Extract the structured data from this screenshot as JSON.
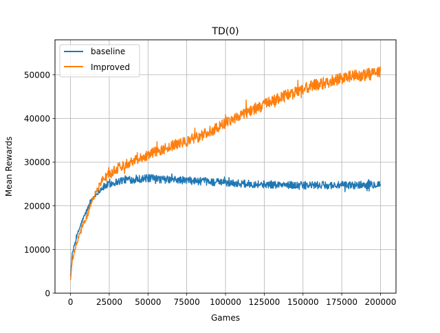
{
  "chart_data": {
    "type": "line",
    "title": "TD(0)",
    "xlabel": "Games",
    "ylabel": "Mean Rewards",
    "xlim": [
      -10000,
      210000
    ],
    "ylim": [
      0,
      58000
    ],
    "xticks": [
      0,
      25000,
      50000,
      75000,
      100000,
      125000,
      150000,
      175000,
      200000
    ],
    "yticks": [
      0,
      10000,
      20000,
      30000,
      40000,
      50000
    ],
    "grid": true,
    "legend": "top-left",
    "series": [
      {
        "name": "baseline",
        "color": "#1f77b4",
        "x": [
          0,
          1000,
          2500,
          5000,
          7500,
          10000,
          12500,
          15000,
          17500,
          20000,
          22500,
          25000,
          30000,
          35000,
          40000,
          45000,
          50000,
          55000,
          60000,
          65000,
          70000,
          75000,
          80000,
          85000,
          90000,
          95000,
          100000,
          105000,
          110000,
          115000,
          120000,
          125000,
          130000,
          135000,
          140000,
          145000,
          150000,
          155000,
          160000,
          165000,
          170000,
          175000,
          180000,
          185000,
          190000,
          195000,
          200000
        ],
        "y": [
          4000,
          8500,
          11000,
          14000,
          16500,
          18500,
          20500,
          22000,
          23000,
          24000,
          24500,
          25000,
          25500,
          26000,
          26000,
          26200,
          26300,
          26200,
          26000,
          26000,
          25900,
          25800,
          25700,
          25600,
          25500,
          25400,
          25300,
          25200,
          25100,
          25000,
          25000,
          24900,
          24900,
          24800,
          24800,
          24700,
          24700,
          24700,
          24700,
          24700,
          24700,
          24700,
          24700,
          24800,
          24800,
          24900,
          25000
        ],
        "noise": 1100
      },
      {
        "name": "Improved",
        "color": "#ff7f0e",
        "x": [
          0,
          1000,
          2500,
          5000,
          7500,
          10000,
          12500,
          15000,
          17500,
          20000,
          22500,
          25000,
          30000,
          35000,
          40000,
          45000,
          50000,
          55000,
          60000,
          65000,
          70000,
          75000,
          80000,
          85000,
          90000,
          95000,
          100000,
          105000,
          110000,
          115000,
          120000,
          125000,
          130000,
          135000,
          140000,
          145000,
          150000,
          155000,
          160000,
          165000,
          170000,
          175000,
          180000,
          185000,
          190000,
          195000,
          200000
        ],
        "y": [
          3000,
          7000,
          9500,
          12500,
          15000,
          17000,
          19500,
          22000,
          24000,
          25500,
          26500,
          27200,
          28500,
          29500,
          30300,
          31000,
          31700,
          32400,
          33000,
          33700,
          34200,
          34800,
          35500,
          36200,
          37000,
          38000,
          39000,
          40000,
          40800,
          41600,
          42400,
          43100,
          43900,
          44600,
          45300,
          46000,
          46700,
          47300,
          47800,
          48300,
          48700,
          49100,
          49500,
          49800,
          50000,
          50200,
          50400
        ],
        "noise": 1400
      }
    ]
  }
}
